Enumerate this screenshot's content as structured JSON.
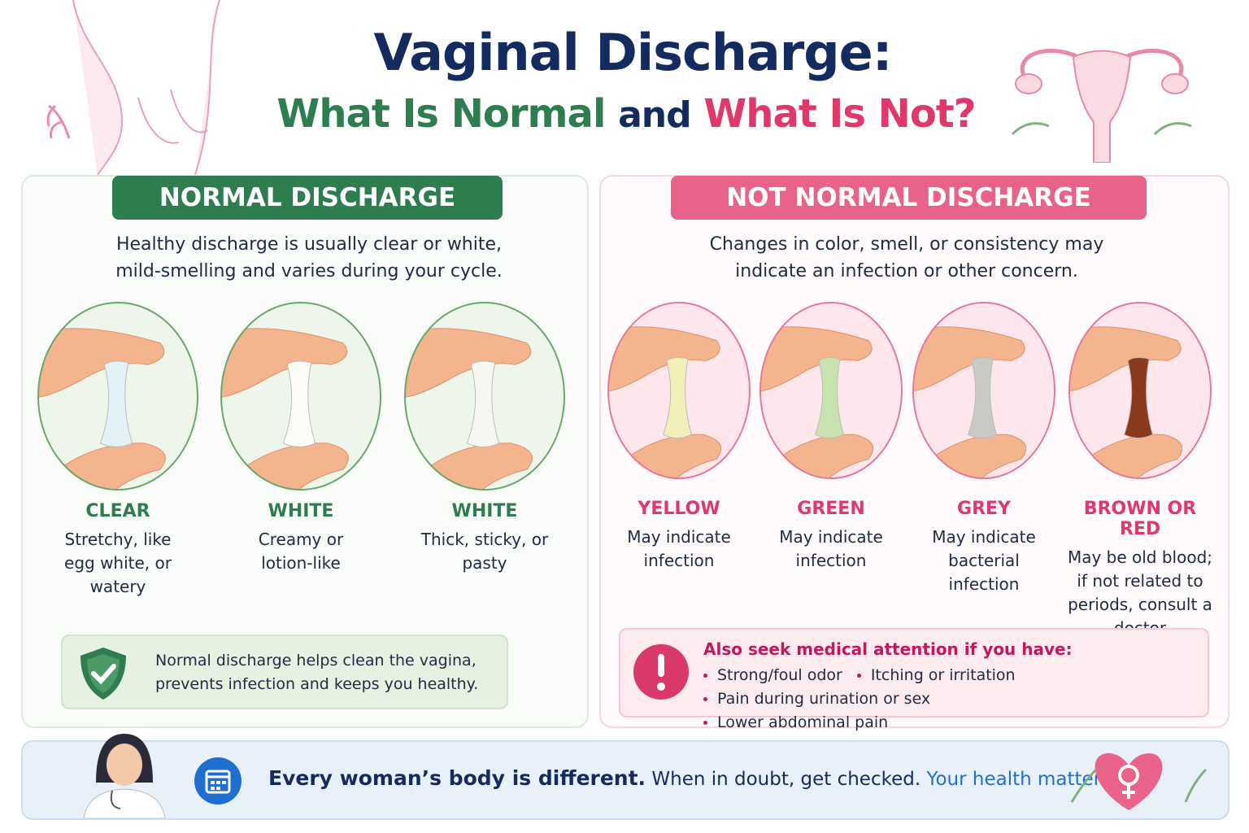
{
  "header": {
    "title": "Vaginal Discharge:",
    "subtitle": {
      "normal": "What Is Normal",
      "and": "and",
      "not_normal": "What Is Not?"
    }
  },
  "normal": {
    "heading": "NORMAL DISCHARGE",
    "intro": "Healthy discharge is usually clear or white, mild-smelling and varies during your cycle.",
    "items": [
      {
        "label": "CLEAR",
        "description": "Stretchy, like egg white, or watery",
        "color": "#e4f1f6"
      },
      {
        "label": "WHITE",
        "description": "Creamy or lotion-like",
        "color": "#fbfbf8"
      },
      {
        "label": "WHITE",
        "description": "Thick, sticky, or pasty",
        "color": "#f6f6f2"
      }
    ],
    "note": "Normal discharge helps clean the vagina, prevents infection and keeps you healthy."
  },
  "not_normal": {
    "heading": "NOT NORMAL DISCHARGE",
    "intro": "Changes in color, smell, or consistency may indicate an infection or other concern.",
    "items": [
      {
        "label": "YELLOW",
        "description": "May indicate infection",
        "color": "#f2efb8"
      },
      {
        "label": "GREEN",
        "description": "May indicate infection",
        "color": "#c8e3b0"
      },
      {
        "label": "GREY",
        "description": "May indicate bacterial infection",
        "color": "#c9c9c6"
      },
      {
        "label": "BROWN OR RED",
        "description": "May be old blood; if not related to periods, consult a doctor",
        "color": "#8a3a1c"
      }
    ],
    "alert": {
      "title": "Also seek medical attention if you have:",
      "symptoms": [
        "Strong/foul odor",
        "Itching or irritation",
        "Pain during urination or sex",
        "Lower abdominal pain"
      ]
    }
  },
  "footer": {
    "emphasis": "Every woman’s body is different.",
    "text": "When in doubt, get checked.",
    "highlight": "Your health matters!"
  }
}
